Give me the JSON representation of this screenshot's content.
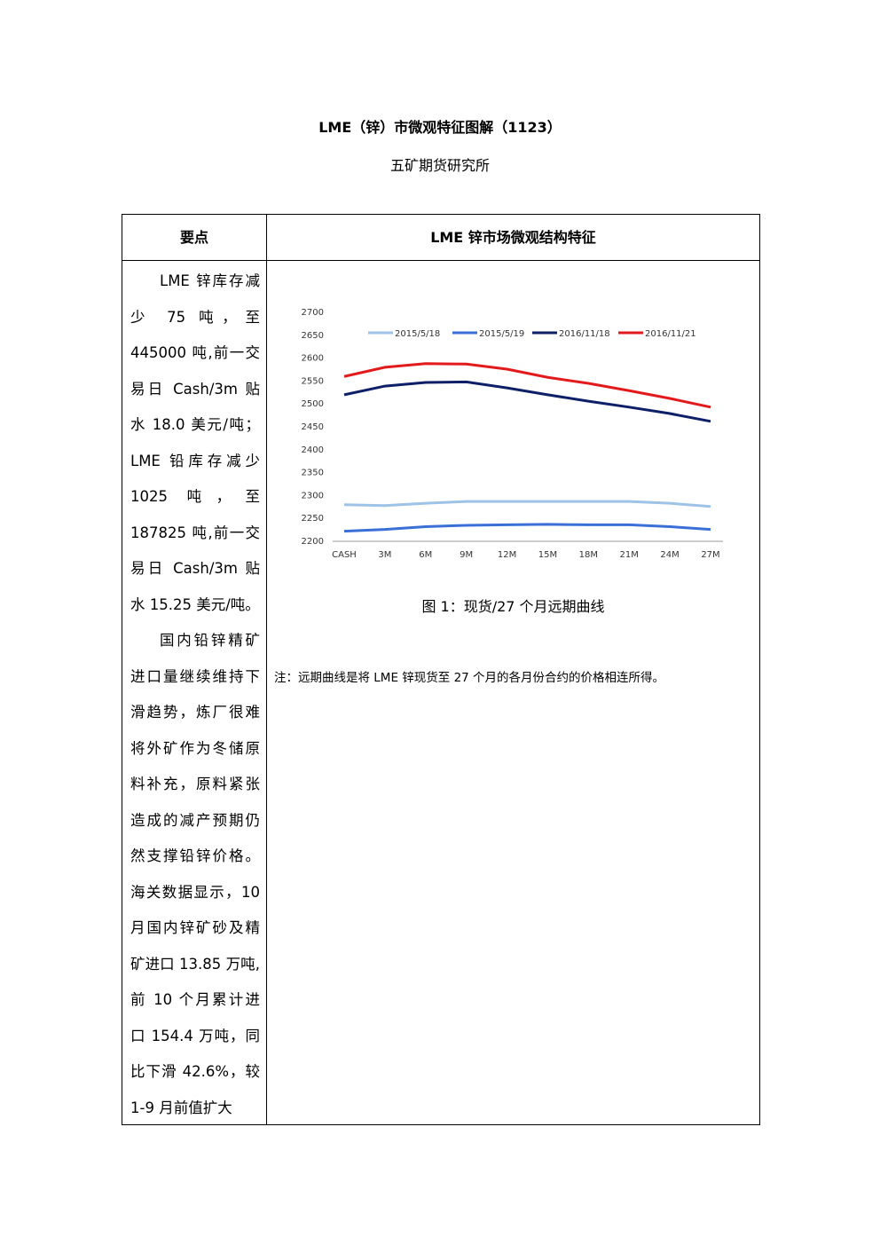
{
  "header": {
    "title": "LME（锌）市微观特征图解（1123）",
    "subtitle": "五矿期货研究所"
  },
  "table": {
    "headers": [
      "要点",
      "LME 锌市场微观结构特征"
    ],
    "left_paragraphs": [
      "LME 锌库存减少 75 吨，至 445000 吨,前一交易日 Cash/3m 贴水 18.0 美元/吨；LME 铅库存减少 1025 吨，至 187825 吨,前一交易日 Cash/3m 贴水 15.25 美元/吨。",
      "国内铅锌精矿进口量继续维持下滑趋势，炼厂很难将外矿作为冬储原料补充，原料紧张造成的减产预期仍然支撑铅锌价格。海关数据显示，10 月国内锌矿砂及精矿进口 13.85 万吨,前 10 个月累计进口 154.4 万吨，同比下滑 42.6%，较 1-9 月前值扩大"
    ],
    "caption": "图 1：现货/27 个月远期曲线",
    "note": "注：远期曲线是将 LME 锌现货至 27 个月的各月份合约的价格相连所得。"
  },
  "chart_data": {
    "type": "line",
    "categories": [
      "CASH",
      "3M",
      "6M",
      "9M",
      "12M",
      "15M",
      "18M",
      "21M",
      "24M",
      "27M"
    ],
    "series": [
      {
        "name": "2015/5/18",
        "color": "#9dc3e6",
        "values": [
          2280,
          2278,
          2283,
          2287,
          2287,
          2287,
          2287,
          2287,
          2283,
          2276
        ]
      },
      {
        "name": "2015/5/19",
        "color": "#3a6fd8",
        "values": [
          2222,
          2226,
          2232,
          2235,
          2236,
          2237,
          2236,
          2236,
          2232,
          2226
        ]
      },
      {
        "name": "2016/11/18",
        "color": "#0d1f66",
        "values": [
          2520,
          2539,
          2547,
          2548,
          2535,
          2520,
          2506,
          2493,
          2479,
          2462
        ]
      },
      {
        "name": "2016/11/21",
        "color": "#e31a1c",
        "values": [
          2560,
          2580,
          2588,
          2587,
          2576,
          2558,
          2545,
          2529,
          2512,
          2493
        ]
      }
    ],
    "ylim": [
      2200,
      2700
    ],
    "yticks": [
      2200,
      2250,
      2300,
      2350,
      2400,
      2450,
      2500,
      2550,
      2600,
      2650,
      2700
    ],
    "grid": false
  }
}
